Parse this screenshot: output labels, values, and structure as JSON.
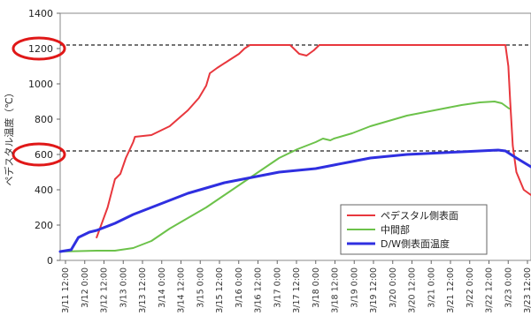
{
  "chart_data": {
    "type": "line",
    "ylabel": "ペデスタル温度（℃）",
    "ylim": [
      0,
      1400
    ],
    "yticks": [
      0,
      200,
      400,
      600,
      800,
      1000,
      1200,
      1400
    ],
    "xlim": [
      0,
      12.9
    ],
    "xticks": [
      "3/11 12:00",
      "3/12 0:00",
      "3/12 12:00",
      "3/13 0:00",
      "3/13 12:00",
      "3/14 0:00",
      "3/14 12:00",
      "3/15 0:00",
      "3/15 12:00",
      "3/16 0:00",
      "3/16 12:00",
      "3/17 0:00",
      "3/17 12:00",
      "3/18 0:00",
      "3/18 12:00",
      "3/19 0:00",
      "3/19 12:00",
      "3/20 0:00",
      "3/20 12:00",
      "3/21 0:00",
      "3/21 12:00",
      "3/22 0:00",
      "3/22 12:00",
      "3/23 0:00",
      "3/23 12:00"
    ],
    "grid": false,
    "legend_position": "bottom-right",
    "reference_lines": [
      1220,
      620
    ],
    "highlighted_ticks": [
      1200,
      600
    ],
    "series": [
      {
        "name": "ペデスタル側表面",
        "color": "#e8373d",
        "points": [
          [
            1.0,
            130
          ],
          [
            1.3,
            300
          ],
          [
            1.5,
            460
          ],
          [
            1.65,
            490
          ],
          [
            1.8,
            580
          ],
          [
            2.0,
            670
          ],
          [
            2.05,
            700
          ],
          [
            2.5,
            710
          ],
          [
            3.0,
            760
          ],
          [
            3.5,
            850
          ],
          [
            3.8,
            920
          ],
          [
            4.0,
            990
          ],
          [
            4.1,
            1060
          ],
          [
            4.3,
            1090
          ],
          [
            4.6,
            1130
          ],
          [
            4.9,
            1170
          ],
          [
            5.05,
            1200
          ],
          [
            5.2,
            1220
          ],
          [
            6.0,
            1220
          ],
          [
            6.3,
            1220
          ],
          [
            6.55,
            1170
          ],
          [
            6.75,
            1160
          ],
          [
            6.95,
            1190
          ],
          [
            7.1,
            1220
          ],
          [
            9.0,
            1220
          ],
          [
            11.0,
            1220
          ],
          [
            12.2,
            1220
          ],
          [
            12.28,
            1100
          ],
          [
            12.33,
            900
          ],
          [
            12.4,
            650
          ],
          [
            12.5,
            500
          ],
          [
            12.7,
            400
          ],
          [
            12.9,
            370
          ]
        ]
      },
      {
        "name": "中間部",
        "color": "#6cc24a",
        "points": [
          [
            0,
            50
          ],
          [
            1.0,
            55
          ],
          [
            1.5,
            55
          ],
          [
            2.0,
            70
          ],
          [
            2.5,
            110
          ],
          [
            3.0,
            180
          ],
          [
            3.5,
            240
          ],
          [
            4.0,
            300
          ],
          [
            4.5,
            370
          ],
          [
            5.0,
            440
          ],
          [
            5.5,
            510
          ],
          [
            6.0,
            580
          ],
          [
            6.5,
            630
          ],
          [
            7.0,
            670
          ],
          [
            7.2,
            690
          ],
          [
            7.4,
            680
          ],
          [
            7.5,
            690
          ],
          [
            8.0,
            720
          ],
          [
            8.5,
            760
          ],
          [
            9.0,
            790
          ],
          [
            9.5,
            820
          ],
          [
            10.0,
            840
          ],
          [
            10.5,
            860
          ],
          [
            11.0,
            880
          ],
          [
            11.5,
            895
          ],
          [
            11.9,
            900
          ],
          [
            12.1,
            890
          ],
          [
            12.3,
            860
          ]
        ]
      },
      {
        "name": "D/W側表面温度",
        "color": "#2f2fe0",
        "points": [
          [
            0,
            50
          ],
          [
            0.3,
            60
          ],
          [
            0.5,
            130
          ],
          [
            0.8,
            160
          ],
          [
            1.0,
            170
          ],
          [
            1.5,
            210
          ],
          [
            2.0,
            260
          ],
          [
            2.5,
            300
          ],
          [
            3.0,
            340
          ],
          [
            3.5,
            380
          ],
          [
            4.0,
            410
          ],
          [
            4.5,
            440
          ],
          [
            5.0,
            460
          ],
          [
            5.5,
            480
          ],
          [
            6.0,
            500
          ],
          [
            6.5,
            510
          ],
          [
            7.0,
            520
          ],
          [
            7.5,
            540
          ],
          [
            8.0,
            560
          ],
          [
            8.5,
            580
          ],
          [
            9.0,
            590
          ],
          [
            9.5,
            600
          ],
          [
            10.0,
            605
          ],
          [
            10.5,
            610
          ],
          [
            11.0,
            615
          ],
          [
            11.5,
            620
          ],
          [
            12.0,
            625
          ],
          [
            12.2,
            620
          ],
          [
            12.5,
            580
          ],
          [
            12.9,
            530
          ]
        ]
      }
    ]
  }
}
